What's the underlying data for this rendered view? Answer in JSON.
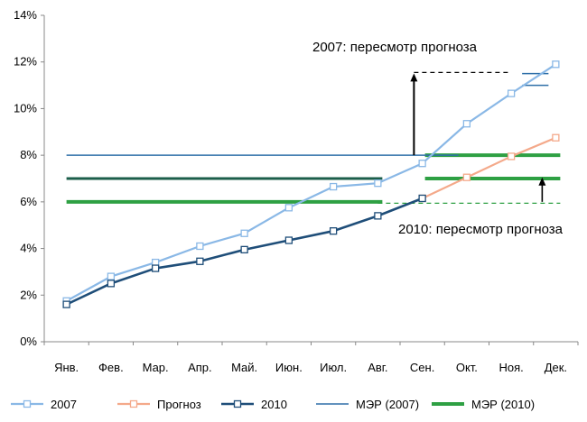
{
  "chart_data": {
    "type": "line",
    "categories": [
      "Янв.",
      "Фев.",
      "Мар.",
      "Апр.",
      "Май.",
      "Июн.",
      "Июл.",
      "Авг.",
      "Сен.",
      "Окт.",
      "Ноя.",
      "Дек."
    ],
    "y_ticks": [
      "0%",
      "2%",
      "4%",
      "6%",
      "8%",
      "10%",
      "12%",
      "14%"
    ],
    "ylim": [
      0,
      14
    ],
    "grid": false,
    "legend_position": "bottom",
    "colors": {
      "2007": "#8ab8e6",
      "forecast": "#f4a98a",
      "2010": "#1f4e79",
      "mer2007": "#2e6fa8",
      "mer2010": "#2ea043"
    },
    "series": [
      {
        "name": "2007",
        "values": [
          1.75,
          2.8,
          3.4,
          4.1,
          4.65,
          5.75,
          6.65,
          6.8,
          7.65,
          9.35,
          10.65,
          11.9
        ]
      },
      {
        "name": "Прогноз",
        "values": [
          null,
          null,
          null,
          null,
          null,
          null,
          null,
          null,
          6.15,
          7.05,
          7.95,
          8.75
        ]
      },
      {
        "name": "2010",
        "values": [
          1.6,
          2.5,
          3.15,
          3.45,
          3.95,
          4.35,
          4.75,
          5.4,
          6.15,
          null,
          null,
          null
        ]
      },
      {
        "name": "МЭР (2007)",
        "segments": [
          {
            "from": "Янв.",
            "to": "Сен.",
            "value": 8
          },
          {
            "from": "Ноя.",
            "to": "Дек.",
            "value": 11
          },
          {
            "from": "Ноя.",
            "to": "Дек.",
            "value": 11.5
          }
        ]
      },
      {
        "name": "МЭР (2010)",
        "segments": [
          {
            "from": "Янв.",
            "to": "Авг.",
            "value": 6
          },
          {
            "from": "Сен.",
            "to": "Дек.",
            "value": 7
          },
          {
            "from": "Сен.",
            "to": "Дек.",
            "value": 8
          }
        ]
      }
    ],
    "reference_lines": [
      {
        "value": 7,
        "from": "Янв.",
        "to": "Авг.",
        "color": "#1b5e4a"
      }
    ],
    "annotations": [
      {
        "text": "2007: пересмотр прогноза",
        "arrow_from": 8,
        "arrow_to": 11.55
      },
      {
        "text": "2010: пересмотр прогноза",
        "arrow_from": 6,
        "arrow_to": 7.05
      }
    ]
  }
}
